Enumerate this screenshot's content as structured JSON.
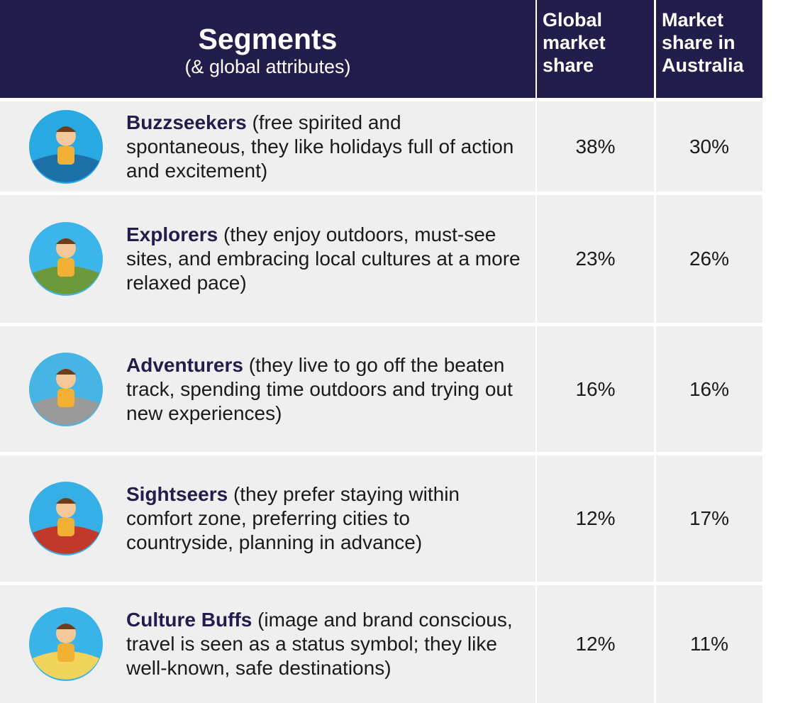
{
  "header": {
    "segments": "Segments",
    "segments_note": "(& global attributes)",
    "global": "Global market share",
    "australia": "Market share in Australia"
  },
  "table": {
    "rows": [
      {
        "name": "Buzzseekers",
        "description": "(free spirited and spontaneous, they like holidays full of action and excitement)",
        "global": "38%",
        "australia": "30%"
      },
      {
        "name": "Explorers",
        "description": "(they enjoy outdoors, must-see sites, and embracing local cultures at a more relaxed pace)",
        "global": "23%",
        "australia": "26%"
      },
      {
        "name": "Adventurers",
        "description": "(they live to go off the beaten track, spending time outdoors and trying out new experiences)",
        "global": "16%",
        "australia": "16%"
      },
      {
        "name": "Sightseers",
        "description": "(they prefer staying within comfort zone, preferring cities to countryside, planning in advance)",
        "global": "12%",
        "australia": "17%"
      },
      {
        "name": "Culture Buffs",
        "description": "(image and brand conscious, travel is seen as a status symbol; they like well-known, safe destinations)",
        "global": "12%",
        "australia": "11%"
      }
    ]
  }
}
